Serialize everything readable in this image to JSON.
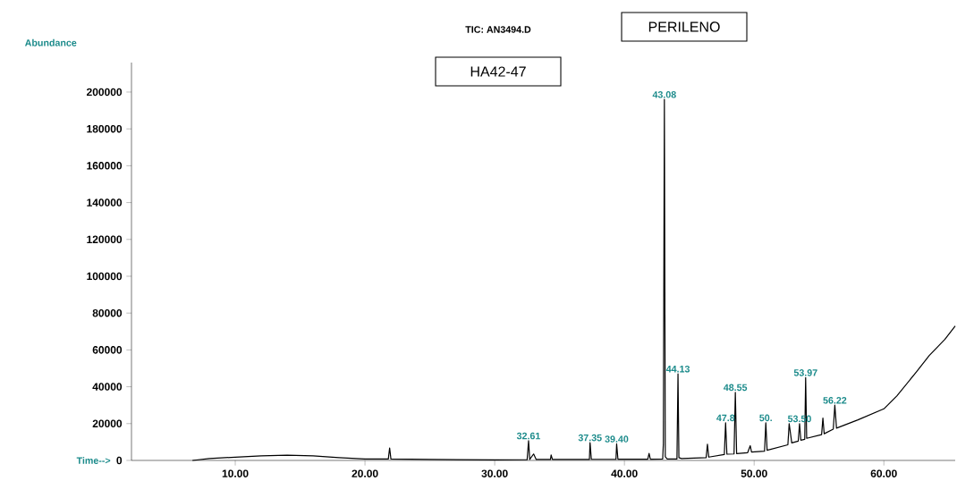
{
  "chart_data": {
    "type": "line",
    "title": "TIC: AN3494.D",
    "xlabel": "Time-->",
    "ylabel": "Abundance",
    "xlim": [
      2,
      65.5
    ],
    "ylim": [
      0,
      216000
    ],
    "xticks": [
      {
        "value": 10,
        "label": "10.00"
      },
      {
        "value": 20,
        "label": "20.00"
      },
      {
        "value": 30,
        "label": "30.00"
      },
      {
        "value": 40,
        "label": "40.00"
      },
      {
        "value": 50,
        "label": "50.00"
      },
      {
        "value": 60,
        "label": "60.00"
      }
    ],
    "yticks": [
      0,
      20000,
      40000,
      60000,
      80000,
      100000,
      120000,
      140000,
      160000,
      180000,
      200000
    ],
    "grid": false,
    "line_style": "solid",
    "series": [
      {
        "color": "#000000",
        "x": [
          6.7,
          8,
          10,
          12,
          14,
          16,
          18,
          20,
          21.8,
          21.9,
          22.0,
          25,
          30,
          32.5,
          32.61,
          32.7,
          33,
          33.2,
          34.3,
          34.35,
          34.45,
          37.3,
          37.35,
          37.45,
          39.35,
          39.4,
          39.5,
          41.8,
          41.9,
          42.0,
          42.95,
          43.0,
          43.08,
          43.15,
          43.3,
          44.05,
          44.13,
          44.2,
          44.4,
          46.3,
          46.4,
          46.5,
          47.7,
          47.8,
          47.9,
          48.45,
          48.55,
          48.65,
          49.5,
          49.7,
          49.8,
          50.8,
          50.9,
          51.0,
          52.6,
          52.7,
          52.9,
          53.4,
          53.5,
          53.6,
          53.9,
          53.97,
          54.05,
          55.2,
          55.3,
          55.4,
          56.1,
          56.22,
          56.35,
          58,
          60,
          61,
          62.5,
          63.5,
          64.7,
          65.5
        ],
        "values": [
          0,
          1000,
          1800,
          2500,
          2800,
          2500,
          1500,
          800,
          800,
          6800,
          800,
          500,
          300,
          400,
          10700,
          500,
          3500,
          500,
          500,
          3000,
          500,
          500,
          9700,
          600,
          600,
          9000,
          700,
          700,
          3800,
          700,
          800,
          9000,
          196000,
          2000,
          800,
          800,
          47000,
          1500,
          1000,
          1500,
          8800,
          1800,
          3200,
          20500,
          3400,
          3500,
          37000,
          3700,
          4200,
          8000,
          4500,
          5000,
          20500,
          5500,
          8500,
          20000,
          9500,
          10500,
          20000,
          11000,
          11500,
          45000,
          12000,
          14000,
          23000,
          14500,
          17000,
          30000,
          17500,
          22000,
          28000,
          35000,
          48000,
          57000,
          65700,
          73000
        ]
      }
    ],
    "annotations": [
      "PERILENO",
      "HA42-47",
      {
        "text": "43.08",
        "x": 43.08,
        "y": 196000
      },
      {
        "text": "44.13",
        "x": 44.13,
        "y": 47000
      },
      {
        "text": "32.61",
        "x": 32.61,
        "y": 10700
      },
      {
        "text": "37.35",
        "x": 37.35,
        "y": 9700
      },
      {
        "text": "39.40",
        "x": 39.4,
        "y": 9000
      },
      {
        "text": "47.8",
        "x": 47.8,
        "y": 20500
      },
      {
        "text": "48.55",
        "x": 48.55,
        "y": 37000
      },
      {
        "text": "50.",
        "x": 50.9,
        "y": 20500
      },
      {
        "text": "53.50",
        "x": 53.5,
        "y": 20000
      },
      {
        "text": "53.97",
        "x": 53.97,
        "y": 45000
      },
      {
        "text": "56.22",
        "x": 56.22,
        "y": 30000
      }
    ]
  }
}
